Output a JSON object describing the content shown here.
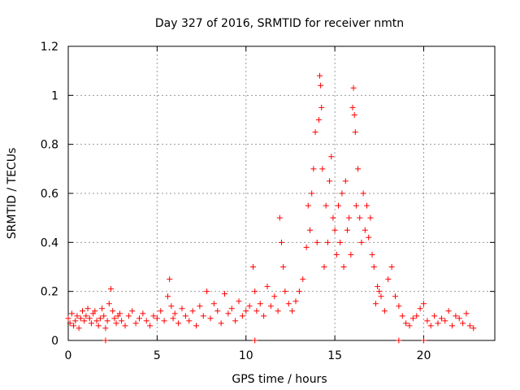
{
  "chart_data": {
    "type": "scatter",
    "title": "Day 327 of 2016, SRMTID for receiver nmtn",
    "xlabel": "GPS time / hours",
    "ylabel": "SRMTID / TECUs",
    "xlim": [
      0,
      24
    ],
    "ylim": [
      0,
      1.2
    ],
    "xticks": [
      0,
      5,
      10,
      15,
      20
    ],
    "xtick_labels": [
      "0",
      "5",
      "10",
      "15",
      "20"
    ],
    "yticks": [
      0,
      0.2,
      0.4,
      0.6,
      0.8,
      1.0,
      1.2
    ],
    "ytick_labels": [
      "0",
      "0.2",
      "0.4",
      "0.6",
      "0.8",
      "1",
      "1.2"
    ],
    "grid": true,
    "marker": "+",
    "color": "#ff0000",
    "series": [
      {
        "name": "SRMTID",
        "x": [
          0.0,
          0.1,
          0.2,
          0.3,
          0.4,
          0.5,
          0.6,
          0.7,
          0.8,
          0.9,
          1.0,
          1.1,
          1.2,
          1.3,
          1.4,
          1.5,
          1.6,
          1.7,
          1.8,
          1.9,
          2.0,
          2.1,
          2.2,
          2.3,
          2.4,
          2.5,
          2.6,
          2.7,
          2.8,
          2.9,
          3.0,
          3.2,
          3.4,
          3.6,
          3.8,
          4.0,
          4.2,
          4.4,
          4.6,
          4.8,
          5.0,
          5.2,
          5.4,
          5.6,
          5.7,
          5.8,
          5.9,
          6.0,
          6.2,
          6.4,
          6.6,
          6.8,
          7.0,
          7.2,
          7.4,
          7.6,
          7.8,
          8.0,
          8.2,
          8.4,
          8.6,
          8.8,
          9.0,
          9.2,
          9.4,
          9.6,
          9.8,
          10.0,
          10.2,
          10.4,
          10.5,
          10.6,
          10.8,
          11.0,
          11.2,
          11.4,
          11.6,
          11.8,
          11.9,
          12.0,
          12.1,
          12.2,
          12.4,
          12.6,
          12.8,
          13.0,
          13.2,
          13.4,
          13.5,
          13.6,
          13.7,
          13.8,
          13.9,
          14.0,
          14.1,
          14.15,
          14.2,
          14.25,
          14.3,
          14.4,
          14.5,
          14.6,
          14.7,
          14.8,
          14.9,
          15.0,
          15.1,
          15.2,
          15.3,
          15.4,
          15.5,
          15.6,
          15.7,
          15.8,
          15.9,
          16.0,
          16.05,
          16.1,
          16.15,
          16.2,
          16.3,
          16.4,
          16.5,
          16.6,
          16.7,
          16.8,
          16.9,
          17.0,
          17.1,
          17.2,
          17.3,
          17.4,
          17.5,
          17.6,
          17.8,
          18.0,
          18.2,
          18.4,
          18.6,
          18.8,
          19.0,
          19.2,
          19.4,
          19.6,
          19.8,
          20.0,
          20.2,
          20.4,
          20.6,
          20.8,
          21.0,
          21.2,
          21.4,
          21.6,
          21.8,
          22.0,
          22.2,
          22.4,
          22.6,
          22.8,
          2.1,
          10.5,
          18.6,
          20.0
        ],
        "y": [
          0.09,
          0.07,
          0.11,
          0.06,
          0.08,
          0.1,
          0.05,
          0.09,
          0.12,
          0.08,
          0.1,
          0.13,
          0.09,
          0.07,
          0.11,
          0.12,
          0.08,
          0.06,
          0.09,
          0.13,
          0.1,
          0.05,
          0.08,
          0.15,
          0.21,
          0.12,
          0.09,
          0.07,
          0.1,
          0.11,
          0.08,
          0.06,
          0.1,
          0.12,
          0.07,
          0.09,
          0.11,
          0.08,
          0.06,
          0.1,
          0.09,
          0.12,
          0.08,
          0.18,
          0.25,
          0.14,
          0.09,
          0.11,
          0.07,
          0.13,
          0.1,
          0.08,
          0.12,
          0.06,
          0.14,
          0.1,
          0.2,
          0.09,
          0.15,
          0.12,
          0.07,
          0.19,
          0.11,
          0.13,
          0.08,
          0.16,
          0.1,
          0.12,
          0.14,
          0.3,
          0.2,
          0.12,
          0.15,
          0.1,
          0.22,
          0.14,
          0.18,
          0.12,
          0.5,
          0.4,
          0.3,
          0.2,
          0.15,
          0.12,
          0.16,
          0.2,
          0.25,
          0.38,
          0.55,
          0.45,
          0.6,
          0.7,
          0.85,
          0.4,
          0.9,
          1.08,
          1.04,
          0.95,
          0.7,
          0.3,
          0.55,
          0.4,
          0.65,
          0.75,
          0.5,
          0.45,
          0.35,
          0.55,
          0.4,
          0.6,
          0.3,
          0.65,
          0.45,
          0.5,
          0.35,
          0.95,
          1.03,
          0.92,
          0.85,
          0.55,
          0.7,
          0.5,
          0.4,
          0.6,
          0.45,
          0.55,
          0.42,
          0.5,
          0.35,
          0.3,
          0.15,
          0.22,
          0.2,
          0.18,
          0.12,
          0.25,
          0.3,
          0.18,
          0.14,
          0.1,
          0.07,
          0.06,
          0.09,
          0.1,
          0.13,
          0.15,
          0.08,
          0.06,
          0.1,
          0.07,
          0.09,
          0.08,
          0.12,
          0.06,
          0.1,
          0.09,
          0.07,
          0.11,
          0.06,
          0.05,
          0.0,
          0.0,
          0.0,
          0.0
        ]
      }
    ]
  }
}
